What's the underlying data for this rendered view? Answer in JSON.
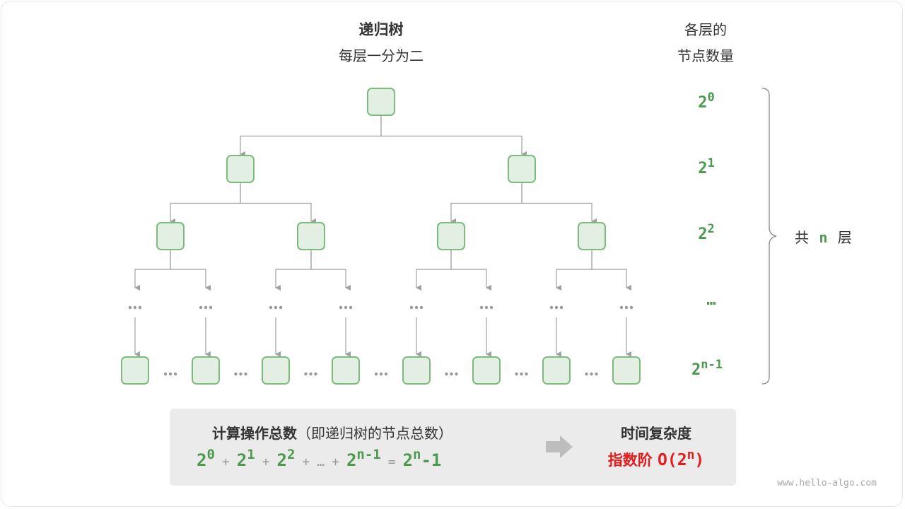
{
  "header": {
    "title": "递归树",
    "subtitle": "每层一分为二"
  },
  "right_column": {
    "title_line1": "各层的",
    "title_line2": "节点数量",
    "levels": [
      {
        "base": "2",
        "exp": "0"
      },
      {
        "base": "2",
        "exp": "1"
      },
      {
        "base": "2",
        "exp": "2"
      },
      {
        "base": "…",
        "exp": ""
      },
      {
        "base": "2",
        "exp": "n-1"
      }
    ],
    "total_prefix": "共",
    "total_n": "n",
    "total_suffix": "层"
  },
  "tree": {
    "depth_shown": 3,
    "ellipsis": "•••"
  },
  "summary": {
    "label_bold": "计算操作总数",
    "label_paren": "（即递归树的节点总数）",
    "terms": [
      {
        "base": "2",
        "exp": "0"
      },
      {
        "base": "2",
        "exp": "1"
      },
      {
        "base": "2",
        "exp": "2"
      }
    ],
    "plus": "+",
    "dots": "…",
    "last_term": {
      "base": "2",
      "exp": "n-1"
    },
    "equals": "=",
    "result_base": "2",
    "result_exp": "n",
    "result_tail": "-1",
    "complexity_title": "时间复杂度",
    "complexity_name": "指数阶",
    "complexity_open": "O(2",
    "complexity_exp": "n",
    "complexity_close": ")"
  },
  "watermark": "www.hello-algo.com",
  "colors": {
    "node_fill": "#e3efe3",
    "node_stroke": "#7dbb7d",
    "edge": "#a0a0a0",
    "accent_green": "#4b9a4e",
    "accent_red": "#e51d1d"
  }
}
